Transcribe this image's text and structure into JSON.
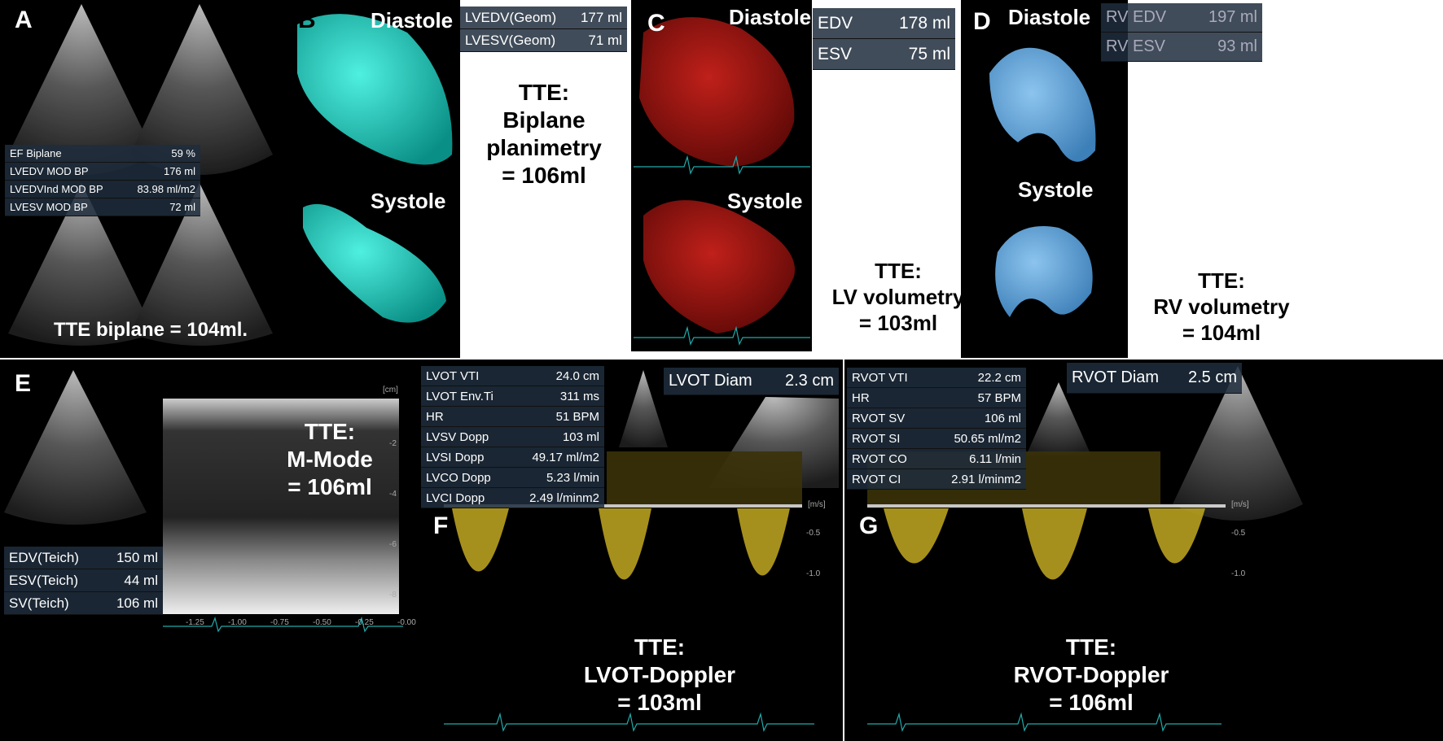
{
  "panels": [
    {
      "label": "A",
      "measurements": [
        [
          "EF Biplane",
          "59 %"
        ],
        [
          "LVEDV MOD BP",
          "176 ml"
        ],
        [
          "LVEDVInd MOD BP",
          "83.98 ml/m2"
        ],
        [
          "LVESV MOD BP",
          "72 ml"
        ]
      ],
      "caption": [
        "TTE biplane = 104ml."
      ]
    },
    {
      "label": "B",
      "phases": [
        "Diastole",
        "Systole"
      ],
      "measurements": [
        [
          "LVEDV(Geom)",
          "177 ml"
        ],
        [
          "LVESV(Geom)",
          "71 ml"
        ]
      ],
      "caption": [
        "TTE:",
        "Biplane",
        "planimetry",
        "= 106ml"
      ]
    },
    {
      "label": "C",
      "phases": [
        "Diastole",
        "Systole"
      ],
      "measurements": [
        [
          "EDV",
          "178 ml"
        ],
        [
          "ESV",
          "75 ml"
        ]
      ],
      "caption": [
        "TTE:",
        "LV volumetry",
        "= 103ml"
      ]
    },
    {
      "label": "D",
      "phases": [
        "Diastole",
        "Systole"
      ],
      "measurements": [
        [
          "RV EDV",
          "197 ml"
        ],
        [
          "RV ESV",
          "93 ml"
        ]
      ],
      "caption": [
        "TTE:",
        "RV volumetry",
        "= 104ml"
      ]
    },
    {
      "label": "E",
      "measurements": [
        [
          "EDV(Teich)",
          "150 ml"
        ],
        [
          "ESV(Teich)",
          "44 ml"
        ],
        [
          "SV(Teich)",
          "106 ml"
        ]
      ],
      "caption": [
        "TTE:",
        "M-Mode",
        "= 106ml"
      ],
      "depth_unit": "[cm]",
      "depth_ticks": [
        "-2",
        "-4",
        "-6",
        "-8"
      ],
      "time_ticks": [
        "-1.25",
        "-1.00",
        "-0.75",
        "-0.50",
        "-0.25",
        "-0.00"
      ]
    },
    {
      "label": "F",
      "measurements": [
        [
          "LVOT VTI",
          "24.0 cm"
        ],
        [
          "LVOT Env.Ti",
          "311 ms"
        ],
        [
          "HR",
          "51 BPM"
        ],
        [
          "LVSV Dopp",
          "103 ml"
        ],
        [
          "LVSI Dopp",
          "49.17 ml/m2"
        ],
        [
          "LVCO Dopp",
          "5.23 l/min"
        ],
        [
          "LVCI Dopp",
          "2.49 l/minm2"
        ]
      ],
      "diameter": [
        "LVOT Diam",
        "2.3 cm"
      ],
      "caption": [
        "TTE:",
        "LVOT-Doppler",
        "= 103ml"
      ],
      "velocity_unit": "[m/s]",
      "velocity_ticks": [
        "-0.5",
        "-1.0"
      ]
    },
    {
      "label": "G",
      "measurements": [
        [
          "RVOT VTI",
          "22.2 cm"
        ],
        [
          "HR",
          "57 BPM"
        ],
        [
          "RVOT SV",
          "106 ml"
        ],
        [
          "RVOT SI",
          "50.65 ml/m2"
        ],
        [
          "RVOT CO",
          "6.11 l/min"
        ],
        [
          "RVOT CI",
          "2.91 l/minm2"
        ]
      ],
      "diameter": [
        "RVOT Diam",
        "2.5 cm"
      ],
      "caption": [
        "TTE:",
        "RVOT-Doppler",
        "= 106ml"
      ],
      "velocity_unit": "[m/s]",
      "velocity_ticks": [
        "-0.5",
        "-1.0"
      ]
    }
  ]
}
